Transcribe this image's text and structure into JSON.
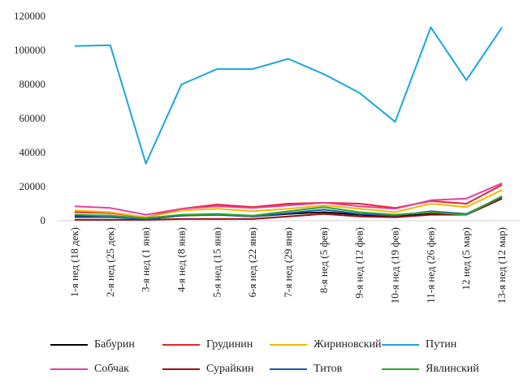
{
  "chart_data": {
    "type": "line",
    "title": "",
    "xlabel": "",
    "ylabel": "",
    "ylim": [
      0,
      120000
    ],
    "yticks": [
      "0",
      "20000",
      "40000",
      "60000",
      "80000",
      "100000",
      "120000"
    ],
    "grid": false,
    "legend_position": "bottom",
    "categories": [
      "1-я нед (18 дек)",
      "2-я нед (25 дек)",
      "3-я нед (1 янв)",
      "4-я нед (8 янв)",
      "5-я нед (15 янв)",
      "6-я нед (22 янв)",
      "7-я нед (29 янв)",
      "8-я нед (5 фев)",
      "9-я нед (12 фев)",
      "10-я нед (19 фев)",
      "11-я нед (26 фев)",
      "12 нед (5 мар)",
      "13-я нед (12 мар)"
    ],
    "series": [
      {
        "name": "Бабурин",
        "color": "#000000",
        "values": [
          3000,
          3000,
          1000,
          3000,
          3500,
          2500,
          4000,
          5000,
          3500,
          2500,
          4000,
          3500,
          13000
        ]
      },
      {
        "name": "Грудинин",
        "color": "#e8242a",
        "values": [
          5000,
          4500,
          2000,
          7000,
          9500,
          8000,
          10000,
          10500,
          10000,
          7500,
          11500,
          10000,
          21000
        ]
      },
      {
        "name": "Жириновский",
        "color": "#f5b800",
        "values": [
          6000,
          5000,
          2000,
          6000,
          7000,
          5500,
          7000,
          9000,
          7000,
          5000,
          10000,
          8000,
          18000
        ]
      },
      {
        "name": "Путин",
        "color": "#1aa6db",
        "values": [
          102500,
          103000,
          33500,
          80000,
          89000,
          89000,
          95000,
          86000,
          75000,
          58000,
          113500,
          82500,
          113500
        ]
      },
      {
        "name": "Собчак",
        "color": "#e83ea6",
        "values": [
          8500,
          7500,
          3500,
          7000,
          8500,
          7500,
          9000,
          10500,
          8500,
          7000,
          12000,
          13000,
          22000
        ]
      },
      {
        "name": "Сурайкин",
        "color": "#9b0e14",
        "values": [
          500,
          500,
          500,
          1000,
          1000,
          1000,
          2500,
          4000,
          2500,
          2000,
          3500,
          3500,
          13000
        ]
      },
      {
        "name": "Титов",
        "color": "#1f5ab0",
        "values": [
          2000,
          2000,
          1000,
          3000,
          3500,
          2500,
          4500,
          6500,
          4000,
          3000,
          5500,
          4000,
          14000
        ]
      },
      {
        "name": "Явлинский",
        "color": "#2ca82c",
        "values": [
          3500,
          3000,
          1500,
          3500,
          4000,
          3000,
          5500,
          8000,
          5000,
          3500,
          5000,
          3500,
          14500
        ]
      }
    ]
  }
}
